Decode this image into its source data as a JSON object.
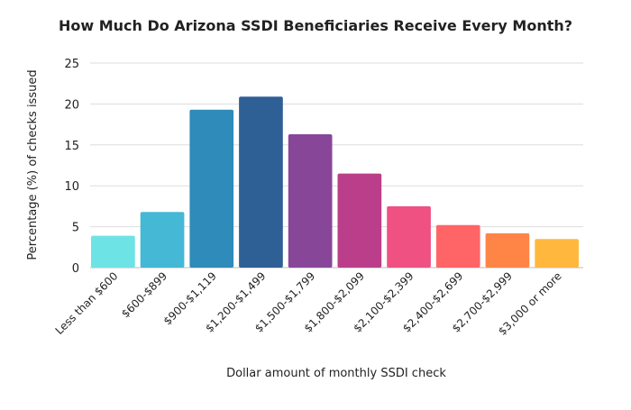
{
  "chart_data": {
    "type": "bar",
    "title": "How Much Do Arizona SSDI Beneficiaries Receive Every Month?",
    "xlabel": "Dollar amount of monthly SSDI check",
    "ylabel": "Percentage (%) of checks issued",
    "ylim": [
      0,
      25
    ],
    "yticks": [
      0,
      5,
      10,
      15,
      20,
      25
    ],
    "grid": true,
    "categories": [
      "Less than $600",
      "$600-$899",
      "$900-$1,119",
      "$1,200-$1,499",
      "$1,500-$1,799",
      "$1,800-$2,099",
      "$2,100-$2,399",
      "$2,400-$2,699",
      "$2,700-$2,999",
      "$3,000 or more"
    ],
    "values": [
      3.9,
      6.8,
      19.3,
      20.9,
      16.3,
      11.5,
      7.5,
      5.2,
      4.2,
      3.5
    ],
    "colors": [
      "#6de3e6",
      "#44b8d4",
      "#2e8bba",
      "#2e5f95",
      "#884699",
      "#bb3e8a",
      "#ef5183",
      "#ff6566",
      "#ff8547",
      "#ffb83d"
    ]
  }
}
